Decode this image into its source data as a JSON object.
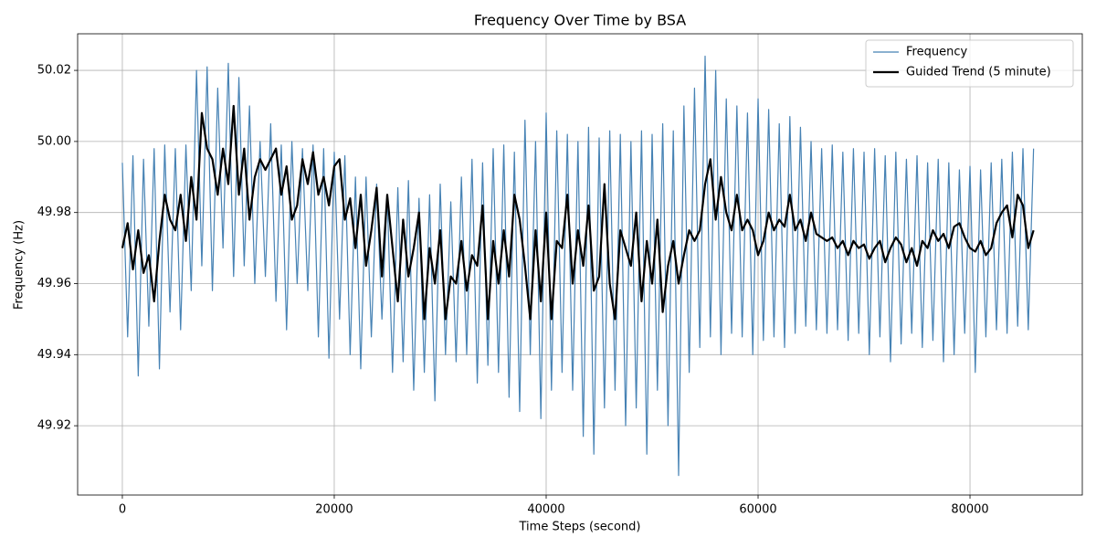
{
  "chart_data": {
    "type": "line",
    "title": "Frequency Over Time by BSA",
    "x_label": "Time Steps (second)",
    "y_label": "Frequency (Hz)",
    "xlim": [
      -4220,
      90600
    ],
    "ylim": [
      49.9005,
      50.0303
    ],
    "xticks": [
      0,
      20000,
      40000,
      60000,
      80000
    ],
    "yticks": [
      49.92,
      49.94,
      49.96,
      49.98,
      {
        "value": 50,
        "label": "50.00"
      },
      50.02
    ],
    "grid": true,
    "legend": "upper right",
    "x": [
      0,
      500,
      1000,
      1500,
      2000,
      2500,
      3000,
      3500,
      4000,
      4500,
      5000,
      5500,
      6000,
      6500,
      7000,
      7500,
      8000,
      8500,
      9000,
      9500,
      10000,
      10500,
      11000,
      11500,
      12000,
      12500,
      13000,
      13500,
      14000,
      14500,
      15000,
      15500,
      16000,
      16500,
      17000,
      17500,
      18000,
      18500,
      19000,
      19500,
      20000,
      20500,
      21000,
      21500,
      22000,
      22500,
      23000,
      23500,
      24000,
      24500,
      25000,
      25500,
      26000,
      26500,
      27000,
      27500,
      28000,
      28500,
      29000,
      29500,
      30000,
      30500,
      31000,
      31500,
      32000,
      32500,
      33000,
      33500,
      34000,
      34500,
      35000,
      35500,
      36000,
      36500,
      37000,
      37500,
      38000,
      38500,
      39000,
      39500,
      40000,
      40500,
      41000,
      41500,
      42000,
      42500,
      43000,
      43500,
      44000,
      44500,
      45000,
      45500,
      46000,
      46500,
      47000,
      47500,
      48000,
      48500,
      49000,
      49500,
      50000,
      50500,
      51000,
      51500,
      52000,
      52500,
      53000,
      53500,
      54000,
      54500,
      55000,
      55500,
      56000,
      56500,
      57000,
      57500,
      58000,
      58500,
      59000,
      59500,
      60000,
      60500,
      61000,
      61500,
      62000,
      62500,
      63000,
      63500,
      64000,
      64500,
      65000,
      65500,
      66000,
      66500,
      67000,
      67500,
      68000,
      68500,
      69000,
      69500,
      70000,
      70500,
      71000,
      71500,
      72000,
      72500,
      73000,
      73500,
      74000,
      74500,
      75000,
      75500,
      76000,
      76500,
      77000,
      77500,
      78000,
      78500,
      79000,
      79500,
      80000,
      80500,
      81000,
      81500,
      82000,
      82500,
      83000,
      83500,
      84000,
      84500,
      85000,
      85500,
      86000
    ],
    "series": [
      {
        "name": "Frequency",
        "color": "#4682b4",
        "width": 1.2,
        "values": [
          49.994,
          49.945,
          49.996,
          49.934,
          49.995,
          49.948,
          49.998,
          49.936,
          49.999,
          49.952,
          49.998,
          49.947,
          49.999,
          49.958,
          50.02,
          49.965,
          50.021,
          49.958,
          50.015,
          49.97,
          50.022,
          49.962,
          50.018,
          49.965,
          50.01,
          49.96,
          50.0,
          49.962,
          50.005,
          49.955,
          49.999,
          49.947,
          50.0,
          49.96,
          49.998,
          49.958,
          49.999,
          49.945,
          49.998,
          49.939,
          49.997,
          49.95,
          49.996,
          49.94,
          49.99,
          49.936,
          49.99,
          49.945,
          49.988,
          49.95,
          49.985,
          49.935,
          49.987,
          49.938,
          49.989,
          49.93,
          49.984,
          49.935,
          49.985,
          49.927,
          49.988,
          49.94,
          49.983,
          49.938,
          49.99,
          49.94,
          49.995,
          49.932,
          49.994,
          49.937,
          49.998,
          49.935,
          49.999,
          49.928,
          49.997,
          49.924,
          50.006,
          49.94,
          50.0,
          49.922,
          50.008,
          49.93,
          50.003,
          49.935,
          50.002,
          49.93,
          50.0,
          49.917,
          50.004,
          49.912,
          50.001,
          49.925,
          50.003,
          49.93,
          50.002,
          49.92,
          50.0,
          49.925,
          50.003,
          49.912,
          50.002,
          49.93,
          50.005,
          49.92,
          50.003,
          49.906,
          50.01,
          49.935,
          50.015,
          49.942,
          50.024,
          49.945,
          50.02,
          49.94,
          50.012,
          49.946,
          50.01,
          49.945,
          50.008,
          49.94,
          50.012,
          49.944,
          50.009,
          49.945,
          50.005,
          49.942,
          50.007,
          49.946,
          50.004,
          49.948,
          50.0,
          49.947,
          49.998,
          49.946,
          49.999,
          49.947,
          49.997,
          49.944,
          49.998,
          49.946,
          49.997,
          49.94,
          49.998,
          49.945,
          49.996,
          49.938,
          49.997,
          49.943,
          49.995,
          49.946,
          49.996,
          49.942,
          49.994,
          49.944,
          49.995,
          49.938,
          49.994,
          49.94,
          49.992,
          49.946,
          49.993,
          49.935,
          49.992,
          49.945,
          49.994,
          49.947,
          49.995,
          49.946,
          49.997,
          49.948,
          49.998,
          49.947,
          49.998
        ]
      },
      {
        "name": "Guided Trend (5 minute)",
        "color": "#000000",
        "width": 2.2,
        "values": [
          49.97,
          49.977,
          49.964,
          49.975,
          49.963,
          49.968,
          49.955,
          49.972,
          49.985,
          49.978,
          49.975,
          49.985,
          49.972,
          49.99,
          49.978,
          50.008,
          49.998,
          49.995,
          49.985,
          49.998,
          49.988,
          50.01,
          49.985,
          49.998,
          49.978,
          49.99,
          49.995,
          49.992,
          49.995,
          49.998,
          49.985,
          49.993,
          49.978,
          49.982,
          49.995,
          49.988,
          49.997,
          49.985,
          49.99,
          49.982,
          49.993,
          49.995,
          49.978,
          49.984,
          49.97,
          49.985,
          49.965,
          49.975,
          49.987,
          49.962,
          49.985,
          49.97,
          49.955,
          49.978,
          49.962,
          49.97,
          49.98,
          49.95,
          49.97,
          49.96,
          49.975,
          49.95,
          49.962,
          49.96,
          49.972,
          49.958,
          49.968,
          49.965,
          49.982,
          49.95,
          49.972,
          49.96,
          49.975,
          49.962,
          49.985,
          49.978,
          49.965,
          49.95,
          49.975,
          49.955,
          49.98,
          49.95,
          49.972,
          49.97,
          49.985,
          49.96,
          49.975,
          49.965,
          49.982,
          49.958,
          49.962,
          49.988,
          49.96,
          49.95,
          49.975,
          49.97,
          49.965,
          49.98,
          49.955,
          49.972,
          49.96,
          49.978,
          49.952,
          49.965,
          49.972,
          49.96,
          49.968,
          49.975,
          49.972,
          49.975,
          49.988,
          49.995,
          49.978,
          49.99,
          49.98,
          49.975,
          49.985,
          49.975,
          49.978,
          49.975,
          49.968,
          49.972,
          49.98,
          49.975,
          49.978,
          49.976,
          49.985,
          49.975,
          49.978,
          49.972,
          49.98,
          49.974,
          49.973,
          49.972,
          49.973,
          49.97,
          49.972,
          49.968,
          49.972,
          49.97,
          49.971,
          49.967,
          49.97,
          49.972,
          49.966,
          49.97,
          49.973,
          49.971,
          49.966,
          49.97,
          49.965,
          49.972,
          49.97,
          49.975,
          49.972,
          49.974,
          49.97,
          49.976,
          49.977,
          49.973,
          49.97,
          49.969,
          49.972,
          49.968,
          49.97,
          49.977,
          49.98,
          49.982,
          49.973,
          49.985,
          49.982,
          49.97,
          49.975
        ]
      }
    ]
  }
}
